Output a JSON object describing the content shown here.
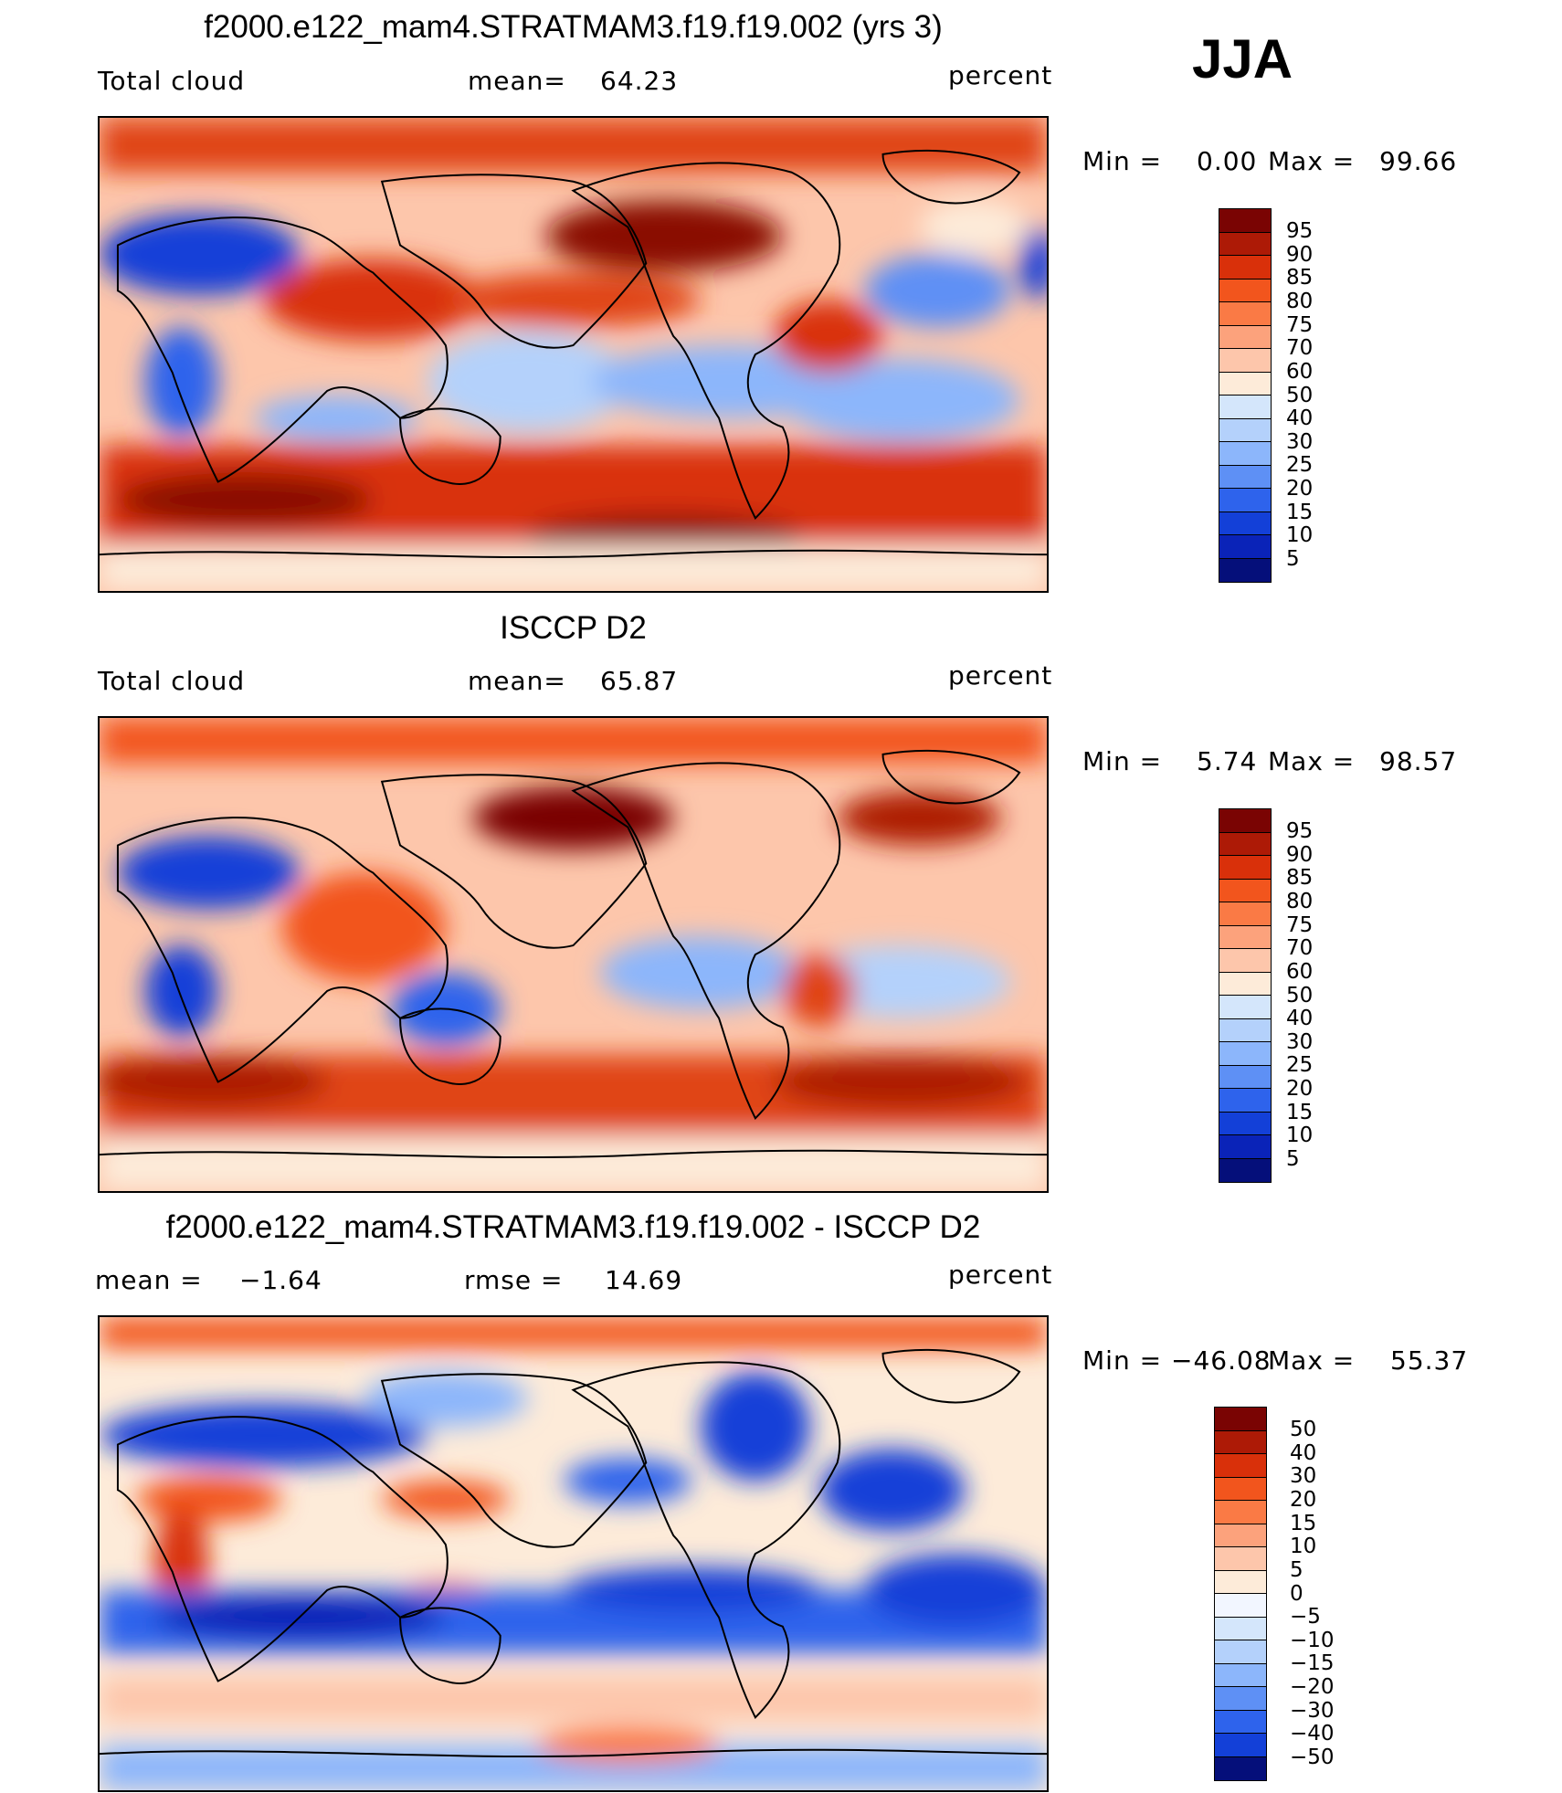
{
  "season": "JJA",
  "panels": [
    {
      "id": "model",
      "title": "f2000.e122_mam4.STRATMAM3.f19.f19.002 (yrs 3)",
      "left_label": "Total cloud",
      "stat_label": "mean=",
      "stat_value": "64.23",
      "stat2_label": "",
      "stat2_value": "",
      "units": "percent",
      "minmax": {
        "min_label": "Min =",
        "min_value": "0.00",
        "max_label": "Max =",
        "max_value": "99.66"
      },
      "colorbar": {
        "levels": [
          "95",
          "90",
          "85",
          "80",
          "75",
          "70",
          "60",
          "50",
          "40",
          "30",
          "25",
          "20",
          "15",
          "10",
          "5"
        ],
        "colors": [
          "#7a0403",
          "#ad1a06",
          "#d9300a",
          "#f2551d",
          "#fa7a45",
          "#fca27c",
          "#fdc6ab",
          "#fdebd9",
          "#d4e6fb",
          "#b4d1fb",
          "#8cb6fb",
          "#5e90f5",
          "#2e63ec",
          "#1340d8",
          "#0a23b8",
          "#050f7a"
        ]
      }
    },
    {
      "id": "obs",
      "title": "ISCCP D2",
      "left_label": "Total cloud",
      "stat_label": "mean=",
      "stat_value": "65.87",
      "stat2_label": "",
      "stat2_value": "",
      "units": "percent",
      "minmax": {
        "min_label": "Min =",
        "min_value": "5.74",
        "max_label": "Max =",
        "max_value": "98.57"
      },
      "colorbar": {
        "levels": [
          "95",
          "90",
          "85",
          "80",
          "75",
          "70",
          "60",
          "50",
          "40",
          "30",
          "25",
          "20",
          "15",
          "10",
          "5"
        ],
        "colors": [
          "#7a0403",
          "#ad1a06",
          "#d9300a",
          "#f2551d",
          "#fa7a45",
          "#fca27c",
          "#fdc6ab",
          "#fdebd9",
          "#d4e6fb",
          "#b4d1fb",
          "#8cb6fb",
          "#5e90f5",
          "#2e63ec",
          "#1340d8",
          "#0a23b8",
          "#050f7a"
        ]
      }
    },
    {
      "id": "diff",
      "title": "f2000.e122_mam4.STRATMAM3.f19.f19.002 - ISCCP D2",
      "left_label": "mean =",
      "stat_label": "",
      "stat_value": "−1.64",
      "stat2_label": "rmse =",
      "stat2_value": "14.69",
      "units": "percent",
      "minmax": {
        "min_label": "Min =",
        "min_value": "−46.08",
        "max_label": "Max =",
        "max_value": "55.37"
      },
      "colorbar": {
        "levels": [
          "50",
          "40",
          "30",
          "20",
          "15",
          "10",
          "5",
          "0",
          "−5",
          "−10",
          "−15",
          "−20",
          "−30",
          "−40",
          "−50"
        ],
        "colors": [
          "#7a0403",
          "#ad1a06",
          "#d9300a",
          "#f2551d",
          "#fa7a45",
          "#fca27c",
          "#fdc6ab",
          "#fdebd9",
          "#f2f6ff",
          "#d4e6fb",
          "#b4d1fb",
          "#8cb6fb",
          "#5e90f5",
          "#2e63ec",
          "#1340d8",
          "#050f7a"
        ]
      }
    }
  ]
}
